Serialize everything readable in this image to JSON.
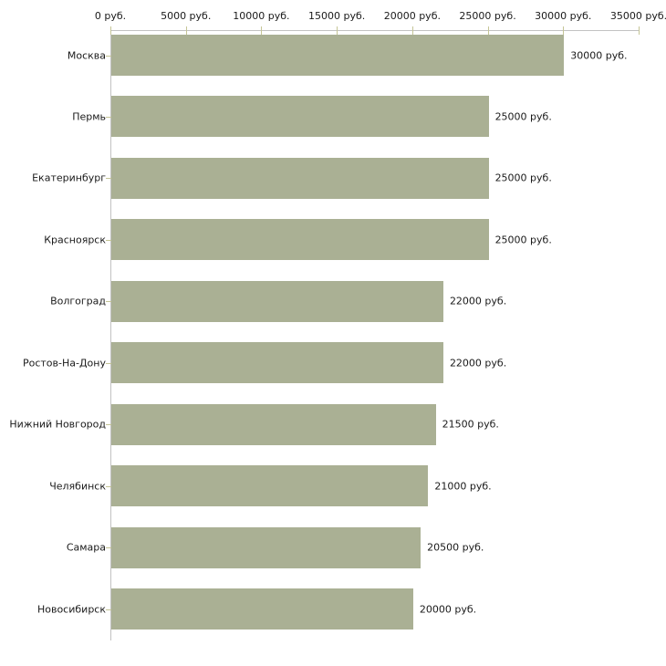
{
  "chart_data": {
    "type": "bar",
    "orientation": "horizontal",
    "title": "",
    "xlabel": "",
    "ylabel": "",
    "grid": false,
    "legend": null,
    "categories": [
      "Москва",
      "Пермь",
      "Екатеринбург",
      "Красноярск",
      "Волгоград",
      "Ростов-На-Дону",
      "Нижний Новгород",
      "Челябинск",
      "Самара",
      "Новосибирск"
    ],
    "values": [
      30000,
      25000,
      25000,
      25000,
      22000,
      22000,
      21500,
      21000,
      20500,
      20000
    ],
    "value_labels": [
      "30000 руб.",
      "25000 руб.",
      "25000 руб.",
      "25000 руб.",
      "22000 руб.",
      "22000 руб.",
      "21500 руб.",
      "21000 руб.",
      "20500 руб.",
      "20000 руб."
    ],
    "x_ticks": [
      0,
      5000,
      10000,
      15000,
      20000,
      25000,
      30000,
      35000
    ],
    "x_tick_labels": [
      "0 руб.",
      "5000 руб.",
      "10000 руб.",
      "15000 руб.",
      "20000 руб.",
      "25000 руб.",
      "30000 руб.",
      "35000 руб."
    ],
    "xlim": [
      0,
      35000
    ],
    "colors": {
      "bar": "#aab094",
      "axis_line": "#c2c2c2",
      "tick": "#c5c596",
      "text": "#1a1a1a",
      "background": "#ffffff"
    }
  }
}
